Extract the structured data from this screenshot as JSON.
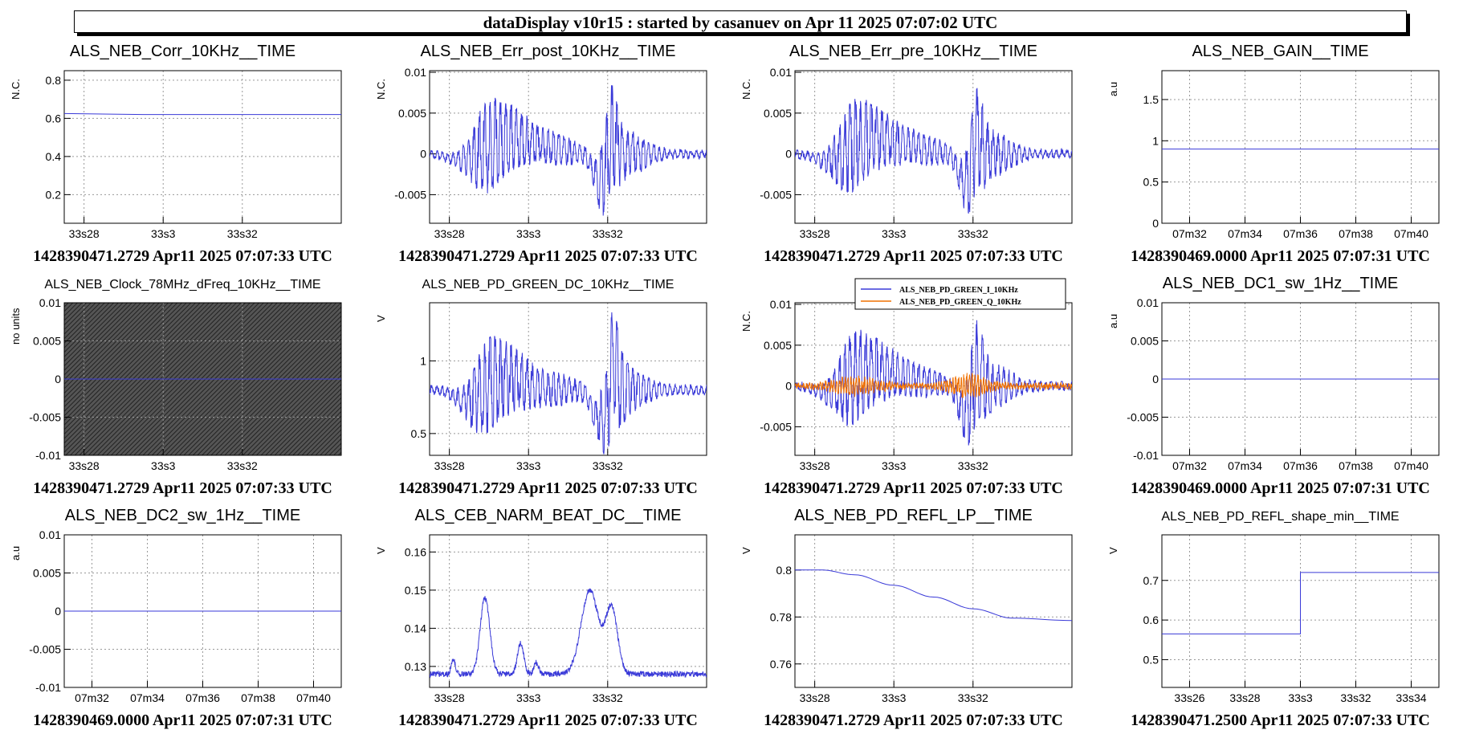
{
  "banner": "dataDisplay v10r15 : started by casanuev on Apr 11 2025 07:07:02 UTC",
  "colors": {
    "primary": "#3a3ad8",
    "secondary": "#f07000",
    "grid": "#999999"
  },
  "chart_data": [
    {
      "type": "line",
      "title": "ALS_NEB_Corr_10KHz__TIME",
      "ylabel": "N.C.",
      "ylim": [
        0.05,
        0.85
      ],
      "yticks": [
        0.2,
        0.4,
        0.6,
        0.8
      ],
      "ytick_labels": [
        "0.2",
        "0.4",
        "0.6",
        "0.8"
      ],
      "xlim": [
        27.5,
        34.5
      ],
      "xticks": [
        28,
        30,
        32
      ],
      "xtick_labels": [
        "33s28",
        "33s3",
        "33s32"
      ],
      "footer": "1428390471.2729 Apr11 2025 07:07:33 UTC",
      "series": [
        {
          "kind": "steps",
          "values": [
            [
              27.5,
              0.625
            ],
            [
              29.5,
              0.62
            ],
            [
              34.5,
              0.62
            ]
          ]
        }
      ]
    },
    {
      "type": "line",
      "title": "ALS_NEB_Err_post_10KHz__TIME",
      "ylabel": "N.C.",
      "ylim": [
        -0.0085,
        0.0102
      ],
      "yticks": [
        -0.005,
        0,
        0.005,
        0.01
      ],
      "ytick_labels": [
        "-0.005",
        "0",
        "0.005",
        "0.01"
      ],
      "xlim": [
        27.5,
        34.5
      ],
      "xticks": [
        28,
        30,
        32
      ],
      "xtick_labels": [
        "33s28",
        "33s3",
        "33s32"
      ],
      "footer": "1428390471.2729 Apr11 2025 07:07:33 UTC",
      "series": [
        {
          "kind": "signal",
          "profile": "err"
        }
      ]
    },
    {
      "type": "line",
      "title": "ALS_NEB_Err_pre_10KHz__TIME",
      "ylabel": "N.C.",
      "ylim": [
        -0.0085,
        0.0102
      ],
      "yticks": [
        -0.005,
        0,
        0.005,
        0.01
      ],
      "ytick_labels": [
        "-0.005",
        "0",
        "0.005",
        "0.01"
      ],
      "xlim": [
        27.5,
        34.5
      ],
      "xticks": [
        28,
        30,
        32
      ],
      "xtick_labels": [
        "33s28",
        "33s3",
        "33s32"
      ],
      "footer": "1428390471.2729 Apr11 2025 07:07:33 UTC",
      "series": [
        {
          "kind": "signal",
          "profile": "err"
        }
      ]
    },
    {
      "type": "line",
      "title": "ALS_NEB_GAIN__TIME",
      "ylabel": "a.u",
      "ylim": [
        0,
        1.85
      ],
      "yticks": [
        0,
        0.5,
        1,
        1.5
      ],
      "ytick_labels": [
        "0",
        "0.5",
        "1",
        "1.5"
      ],
      "xlim": [
        31,
        41
      ],
      "xticks": [
        32,
        34,
        36,
        38,
        40
      ],
      "xtick_labels": [
        "07m32",
        "07m34",
        "07m36",
        "07m38",
        "07m40"
      ],
      "footer": "1428390469.0000 Apr11 2025 07:07:31 UTC",
      "series": [
        {
          "kind": "steps",
          "values": [
            [
              31,
              0.9
            ],
            [
              41,
              0.9
            ]
          ]
        }
      ]
    },
    {
      "type": "line",
      "title": "ALS_NEB_Clock_78MHz_dFreq_10KHz__TIME",
      "ylabel": "no units",
      "ylim": [
        -0.01,
        0.01
      ],
      "yticks": [
        -0.01,
        -0.005,
        0,
        0.005,
        0.01
      ],
      "ytick_labels": [
        "-0.01",
        "-0.005",
        "0",
        "0.005",
        "0.01"
      ],
      "xlim": [
        27.5,
        34.5
      ],
      "xticks": [
        28,
        30,
        32
      ],
      "xtick_labels": [
        "33s28",
        "33s3",
        "33s32"
      ],
      "footer": "1428390471.2729 Apr11 2025 07:07:33 UTC",
      "filled": true,
      "smalltitle": true,
      "series": [
        {
          "kind": "steps",
          "values": [
            [
              27.5,
              0
            ],
            [
              34.5,
              0
            ]
          ]
        }
      ]
    },
    {
      "type": "line",
      "title": "ALS_NEB_PD_GREEN_DC_10KHz__TIME",
      "ylabel": "V",
      "ylim": [
        0.35,
        1.4
      ],
      "yticks": [
        0.5,
        1
      ],
      "ytick_labels": [
        "0.5",
        "1"
      ],
      "xlim": [
        27.5,
        34.5
      ],
      "xticks": [
        28,
        30,
        32
      ],
      "xtick_labels": [
        "33s28",
        "33s3",
        "33s32"
      ],
      "footer": "1428390471.2729 Apr11 2025 07:07:33 UTC",
      "smalltitle": true,
      "series": [
        {
          "kind": "signal",
          "profile": "dc"
        }
      ]
    },
    {
      "type": "line",
      "title": "",
      "ylabel": "N.C.",
      "ylim": [
        -0.0085,
        0.0102
      ],
      "yticks": [
        -0.005,
        0,
        0.005,
        0.01
      ],
      "ytick_labels": [
        "-0.005",
        "0",
        "0.005",
        "0.01"
      ],
      "xlim": [
        27.5,
        34.5
      ],
      "xticks": [
        28,
        30,
        32
      ],
      "xtick_labels": [
        "33s28",
        "33s3",
        "33s32"
      ],
      "footer": "1428390471.2729 Apr11 2025 07:07:33 UTC",
      "legend": [
        "ALS_NEB_PD_GREEN_I_10KHz",
        "ALS_NEB_PD_GREEN_Q_10KHz"
      ],
      "series": [
        {
          "name": "ALS_NEB_PD_GREEN_I_10KHz",
          "kind": "signal",
          "profile": "err"
        },
        {
          "name": "ALS_NEB_PD_GREEN_Q_10KHz",
          "kind": "signal",
          "profile": "q"
        }
      ]
    },
    {
      "type": "line",
      "title": "ALS_NEB_DC1_sw_1Hz__TIME",
      "ylabel": "a.u",
      "ylim": [
        -0.01,
        0.01
      ],
      "yticks": [
        -0.01,
        -0.005,
        0,
        0.005,
        0.01
      ],
      "ytick_labels": [
        "-0.01",
        "-0.005",
        "0",
        "0.005",
        "0.01"
      ],
      "xlim": [
        31,
        41
      ],
      "xticks": [
        32,
        34,
        36,
        38,
        40
      ],
      "xtick_labels": [
        "07m32",
        "07m34",
        "07m36",
        "07m38",
        "07m40"
      ],
      "footer": "1428390469.0000 Apr11 2025 07:07:31 UTC",
      "series": [
        {
          "kind": "steps",
          "values": [
            [
              31,
              0
            ],
            [
              41,
              0
            ]
          ]
        }
      ]
    },
    {
      "type": "line",
      "title": "ALS_NEB_DC2_sw_1Hz__TIME",
      "ylabel": "a.u",
      "ylim": [
        -0.01,
        0.01
      ],
      "yticks": [
        -0.01,
        -0.005,
        0,
        0.005,
        0.01
      ],
      "ytick_labels": [
        "-0.01",
        "-0.005",
        "0",
        "0.005",
        "0.01"
      ],
      "xlim": [
        31,
        41
      ],
      "xticks": [
        32,
        34,
        36,
        38,
        40
      ],
      "xtick_labels": [
        "07m32",
        "07m34",
        "07m36",
        "07m38",
        "07m40"
      ],
      "footer": "1428390469.0000 Apr11 2025 07:07:31 UTC",
      "series": [
        {
          "kind": "steps",
          "values": [
            [
              31,
              0
            ],
            [
              41,
              0
            ]
          ]
        }
      ]
    },
    {
      "type": "line",
      "title": "ALS_CEB_NARM_BEAT_DC__TIME",
      "ylabel": "V",
      "ylim": [
        0.1245,
        0.1645
      ],
      "yticks": [
        0.13,
        0.14,
        0.15,
        0.16
      ],
      "ytick_labels": [
        "0.13",
        "0.14",
        "0.15",
        "0.16"
      ],
      "xlim": [
        27.5,
        34.5
      ],
      "xticks": [
        28,
        30,
        32
      ],
      "xtick_labels": [
        "33s28",
        "33s3",
        "33s32"
      ],
      "footer": "1428390471.2729 Apr11 2025 07:07:33 UTC",
      "series": [
        {
          "kind": "signal",
          "profile": "beat"
        }
      ]
    },
    {
      "type": "line",
      "title": "ALS_NEB_PD_REFL_LP__TIME",
      "ylabel": "V",
      "ylim": [
        0.75,
        0.815
      ],
      "yticks": [
        0.76,
        0.78,
        0.8
      ],
      "ytick_labels": [
        "0.76",
        "0.78",
        "0.8"
      ],
      "xlim": [
        27.5,
        34.5
      ],
      "xticks": [
        28,
        30,
        32
      ],
      "xtick_labels": [
        "33s28",
        "33s3",
        "33s32"
      ],
      "footer": "1428390471.2729 Apr11 2025 07:07:33 UTC",
      "series": [
        {
          "kind": "curve",
          "values": [
            [
              27.5,
              0.8
            ],
            [
              28.2,
              0.8
            ],
            [
              29,
              0.798
            ],
            [
              30,
              0.7935
            ],
            [
              31,
              0.7885
            ],
            [
              32,
              0.7835
            ],
            [
              33,
              0.7795
            ],
            [
              34.5,
              0.7785
            ]
          ]
        }
      ]
    },
    {
      "type": "line",
      "title": "ALS_NEB_PD_REFL_shape_min__TIME",
      "ylabel": "V",
      "ylim": [
        0.43,
        0.815
      ],
      "yticks": [
        0.5,
        0.6,
        0.7
      ],
      "ytick_labels": [
        "0.5",
        "0.6",
        "0.7"
      ],
      "xlim": [
        25,
        35
      ],
      "xticks": [
        26,
        28,
        30,
        32,
        34
      ],
      "xtick_labels": [
        "33s26",
        "33s28",
        "33s3",
        "33s32",
        "33s34"
      ],
      "footer": "1428390471.2500 Apr11 2025 07:07:33 UTC",
      "smalltitle": true,
      "series": [
        {
          "kind": "steps",
          "values": [
            [
              25,
              0.565
            ],
            [
              30,
              0.565
            ],
            [
              30,
              0.72
            ],
            [
              35,
              0.72
            ]
          ]
        }
      ]
    }
  ]
}
